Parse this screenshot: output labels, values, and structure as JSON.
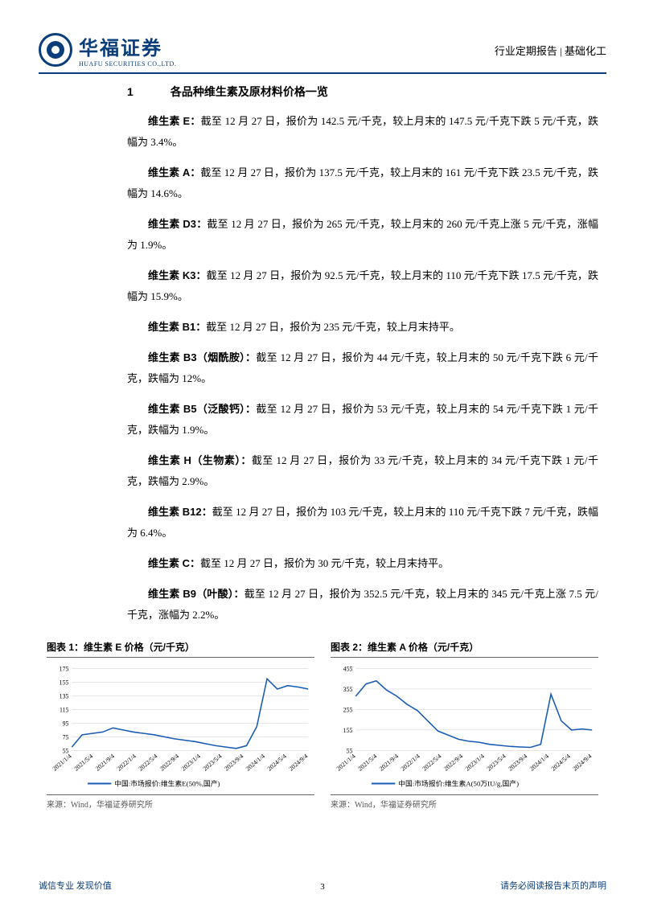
{
  "header": {
    "logo_cn": "华福证券",
    "logo_en": "HUAFU SECURITIES CO.,LTD.",
    "right_text": "行业定期报告 | 基础化工"
  },
  "section": {
    "num": "1",
    "title": "各品种维生素及原材料价格一览"
  },
  "items": [
    {
      "name": "维生素 E：",
      "text": "截至 12 月 27 日，报价为 142.5 元/千克，较上月末的 147.5 元/千克下跌 5 元/千克，跌幅为 3.4%。"
    },
    {
      "name": "维生素 A：",
      "text": "截至 12 月 27 日，报价为 137.5 元/千克，较上月末的 161 元/千克下跌 23.5 元/千克，跌幅为 14.6%。"
    },
    {
      "name": "维生素 D3：",
      "text": "截至 12 月 27 日，报价为 265 元/千克，较上月末的 260 元/千克上涨 5 元/千克，涨幅为 1.9%。"
    },
    {
      "name": "维生素 K3：",
      "text": "截至 12 月 27 日，报价为 92.5 元/千克，较上月末的 110 元/千克下跌 17.5 元/千克，跌幅为 15.9%。"
    },
    {
      "name": "维生素 B1：",
      "text": "截至 12 月 27 日，报价为 235 元/千克，较上月末持平。"
    },
    {
      "name": "维生素 B3（烟酰胺）：",
      "text": "截至 12 月 27 日，报价为 44 元/千克，较上月末的 50 元/千克下跌 6 元/千克，跌幅为 12%。"
    },
    {
      "name": "维生素 B5（泛酸钙）：",
      "text": "截至 12 月 27 日，报价为 53 元/千克，较上月末的 54 元/千克下跌 1 元/千克，跌幅为 1.9%。"
    },
    {
      "name": "维生素 H（生物素）：",
      "text": "截至 12 月 27 日，报价为 33 元/千克，较上月末的 34 元/千克下跌 1 元/千克，跌幅为 2.9%。"
    },
    {
      "name": "维生素 B12：",
      "text": "截至 12 月 27 日，报价为 103 元/千克，较上月末的 110 元/千克下跌 7 元/千克，跌幅为 6.4%。"
    },
    {
      "name": "维生素 C：",
      "text": "截至 12 月 27 日，报价为 30 元/千克，较上月末持平。"
    },
    {
      "name": "维生素 B9（叶酸）：",
      "text": "截至 12 月 27 日，报价为 352.5 元/千克，较上月末的 345 元/千克上涨 7.5 元/千克，涨幅为 2.2%。"
    }
  ],
  "chart1": {
    "title": "图表 1：维生素 E 价格（元/千克）",
    "type": "line",
    "line_color": "#1a5cb3",
    "grid_color": "#cccccc",
    "background_color": "#ffffff",
    "x_labels": [
      "2021/1/4",
      "2021/5/4",
      "2021/9/4",
      "2022/1/4",
      "2022/5/4",
      "2022/9/4",
      "2023/1/4",
      "2023/5/4",
      "2023/9/4",
      "2024/1/4",
      "2024/5/4",
      "2024/9/4"
    ],
    "y_ticks": [
      55,
      75,
      95,
      115,
      135,
      155,
      175
    ],
    "ylim": [
      55,
      175
    ],
    "values": [
      60,
      78,
      80,
      82,
      88,
      85,
      82,
      80,
      78,
      75,
      72,
      70,
      68,
      65,
      62,
      60,
      58,
      62,
      90,
      160,
      145,
      150,
      148,
      145
    ],
    "legend": "中国:市场报价:维生素E(50%,国产)",
    "source": "来源：Wind，华福证券研究所",
    "font_size_axis": 8,
    "font_size_legend": 9
  },
  "chart2": {
    "title": "图表 2：维生素 A 价格（元/千克）",
    "type": "line",
    "line_color": "#1a5cb3",
    "grid_color": "#cccccc",
    "background_color": "#ffffff",
    "x_labels": [
      "2021/1/4",
      "2021/5/4",
      "2021/9/4",
      "2022/1/4",
      "2022/5/4",
      "2022/9/4",
      "2023/1/4",
      "2023/5/4",
      "2023/9/4",
      "2024/1/4",
      "2024/5/4",
      "2024/9/4"
    ],
    "y_ticks": [
      55,
      155,
      255,
      355,
      455
    ],
    "ylim": [
      55,
      455
    ],
    "values": [
      320,
      380,
      395,
      350,
      320,
      280,
      250,
      200,
      150,
      130,
      110,
      100,
      95,
      85,
      80,
      75,
      72,
      70,
      85,
      330,
      200,
      155,
      160,
      155
    ],
    "legend": "中国:市场报价:维生素A(50万IU/g,国产)",
    "source": "来源：Wind，华福证券研究所",
    "font_size_axis": 8,
    "font_size_legend": 9
  },
  "footer": {
    "left": "诚信专业   发现价值",
    "page": "3",
    "right": "请务必阅读报告末页的声明"
  }
}
